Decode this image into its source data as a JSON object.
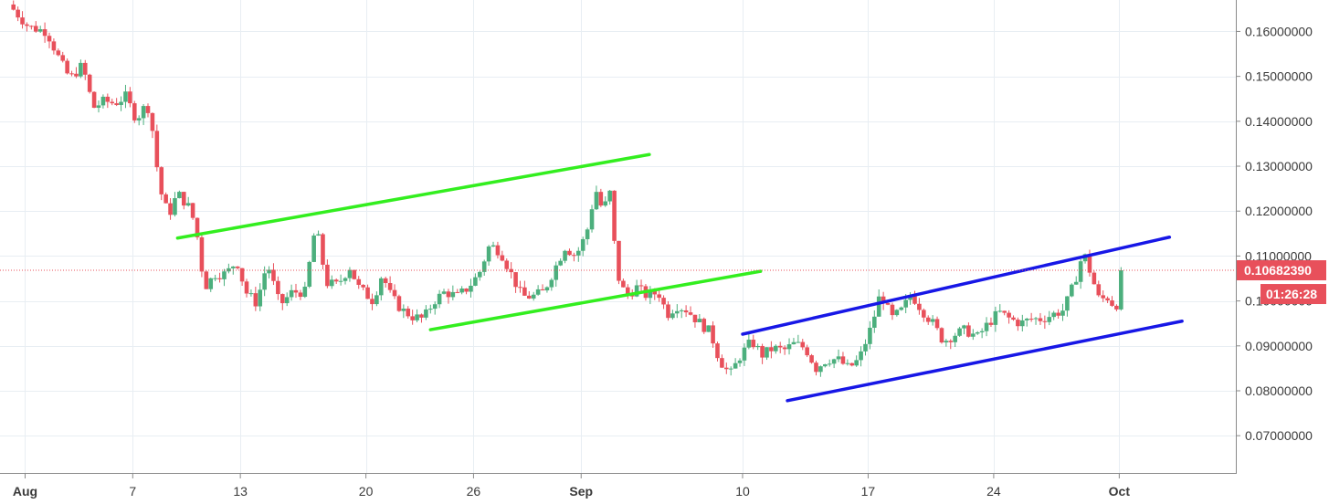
{
  "chart_data": {
    "type": "candlestick",
    "ylim": [
      0.0615,
      0.167
    ],
    "y_ticks": [
      "0.16000000",
      "0.15000000",
      "0.14000000",
      "0.13000000",
      "0.12000000",
      "0.11000000",
      "0.10000000",
      "0.09000000",
      "0.08000000",
      "0.07000000"
    ],
    "y_tick_values": [
      0.16,
      0.15,
      0.14,
      0.13,
      0.12,
      0.11,
      0.1,
      0.09,
      0.08,
      0.07
    ],
    "x_range_days": [
      -1.4,
      67.5
    ],
    "x_ticks": [
      {
        "label": "Aug",
        "day": 0,
        "bold": true
      },
      {
        "label": "7",
        "day": 6,
        "bold": false
      },
      {
        "label": "13",
        "day": 12,
        "bold": false
      },
      {
        "label": "20",
        "day": 19,
        "bold": false
      },
      {
        "label": "26",
        "day": 25,
        "bold": false
      },
      {
        "label": "Sep",
        "day": 31,
        "bold": true
      },
      {
        "label": "10",
        "day": 40,
        "bold": false
      },
      {
        "label": "17",
        "day": 47,
        "bold": false
      },
      {
        "label": "24",
        "day": 54,
        "bold": false
      },
      {
        "label": "Oct",
        "day": 61,
        "bold": true
      }
    ],
    "anchors": [
      [
        -0.9,
        0.166
      ],
      [
        0.2,
        0.161
      ],
      [
        1.2,
        0.16
      ],
      [
        2.0,
        0.153
      ],
      [
        2.5,
        0.1495
      ],
      [
        3.2,
        0.1525
      ],
      [
        3.8,
        0.143
      ],
      [
        4.4,
        0.1445
      ],
      [
        5.0,
        0.144
      ],
      [
        5.6,
        0.1455
      ],
      [
        6.2,
        0.1405
      ],
      [
        6.8,
        0.144
      ],
      [
        7.1,
        0.138
      ],
      [
        7.5,
        0.125
      ],
      [
        8.0,
        0.119
      ],
      [
        8.5,
        0.124
      ],
      [
        9.1,
        0.121
      ],
      [
        9.5,
        0.117
      ],
      [
        10.0,
        0.103
      ],
      [
        10.6,
        0.106
      ],
      [
        11.2,
        0.106
      ],
      [
        11.8,
        0.109
      ],
      [
        12.3,
        0.102
      ],
      [
        12.9,
        0.0995
      ],
      [
        13.5,
        0.1085
      ],
      [
        14.2,
        0.099
      ],
      [
        14.9,
        0.102
      ],
      [
        15.6,
        0.102
      ],
      [
        16.2,
        0.117
      ],
      [
        16.8,
        0.104
      ],
      [
        17.4,
        0.1035
      ],
      [
        18.1,
        0.1075
      ],
      [
        18.6,
        0.103
      ],
      [
        19.4,
        0.1
      ],
      [
        19.9,
        0.106
      ],
      [
        20.4,
        0.101
      ],
      [
        21.0,
        0.098
      ],
      [
        21.6,
        0.0965
      ],
      [
        22.2,
        0.096
      ],
      [
        22.8,
        0.1
      ],
      [
        23.4,
        0.102
      ],
      [
        24.1,
        0.101
      ],
      [
        24.7,
        0.103
      ],
      [
        25.3,
        0.106
      ],
      [
        25.9,
        0.1125
      ],
      [
        26.5,
        0.111
      ],
      [
        27.1,
        0.106
      ],
      [
        27.7,
        0.101
      ],
      [
        28.3,
        0.101
      ],
      [
        28.9,
        0.102
      ],
      [
        29.5,
        0.107
      ],
      [
        30.1,
        0.112
      ],
      [
        30.7,
        0.11
      ],
      [
        31.3,
        0.115
      ],
      [
        31.8,
        0.125
      ],
      [
        32.2,
        0.12
      ],
      [
        32.6,
        0.124
      ],
      [
        33.0,
        0.106
      ],
      [
        33.5,
        0.101
      ],
      [
        34.1,
        0.103
      ],
      [
        34.7,
        0.101
      ],
      [
        35.3,
        0.102
      ],
      [
        35.8,
        0.097
      ],
      [
        36.3,
        0.099
      ],
      [
        36.9,
        0.098
      ],
      [
        37.5,
        0.0955
      ],
      [
        38.2,
        0.093
      ],
      [
        38.7,
        0.087
      ],
      [
        39.3,
        0.0835
      ],
      [
        39.9,
        0.088
      ],
      [
        40.5,
        0.091
      ],
      [
        41.1,
        0.088
      ],
      [
        41.7,
        0.0895
      ],
      [
        42.3,
        0.089
      ],
      [
        42.9,
        0.0905
      ],
      [
        43.5,
        0.0895
      ],
      [
        44.1,
        0.085
      ],
      [
        44.7,
        0.087
      ],
      [
        45.3,
        0.087
      ],
      [
        45.9,
        0.085
      ],
      [
        46.5,
        0.087
      ],
      [
        47.2,
        0.0945
      ],
      [
        47.7,
        0.102
      ],
      [
        48.3,
        0.096
      ],
      [
        48.9,
        0.098
      ],
      [
        49.4,
        0.1015
      ],
      [
        50.0,
        0.098
      ],
      [
        50.6,
        0.095
      ],
      [
        51.2,
        0.091
      ],
      [
        51.8,
        0.0925
      ],
      [
        52.4,
        0.0935
      ],
      [
        53.1,
        0.092
      ],
      [
        53.7,
        0.095
      ],
      [
        54.3,
        0.0975
      ],
      [
        54.9,
        0.096
      ],
      [
        55.5,
        0.095
      ],
      [
        56.1,
        0.096
      ],
      [
        56.7,
        0.096
      ],
      [
        57.3,
        0.097
      ],
      [
        57.9,
        0.098
      ],
      [
        58.5,
        0.104
      ],
      [
        59.0,
        0.111
      ],
      [
        59.5,
        0.105
      ],
      [
        59.9,
        0.1
      ],
      [
        60.3,
        0.101
      ],
      [
        60.7,
        0.099
      ],
      [
        61.0,
        0.0995
      ],
      [
        61.3,
        0.1065
      ]
    ],
    "last_price": "0.10682390",
    "last_price_value": 0.1068239,
    "countdown": "01:26:28",
    "trend_lines": [
      {
        "name": "green-channel-upper",
        "color": "#33ee1f",
        "from": [
          8.5,
          0.114
        ],
        "to": [
          34.8,
          0.1326
        ]
      },
      {
        "name": "green-channel-lower",
        "color": "#33ee1f",
        "from": [
          22.6,
          0.0936
        ],
        "to": [
          41.0,
          0.1066
        ]
      },
      {
        "name": "blue-channel-upper",
        "color": "#1717e6",
        "from": [
          40.0,
          0.0926
        ],
        "to": [
          63.8,
          0.1142
        ]
      },
      {
        "name": "blue-channel-lower",
        "color": "#1717e6",
        "from": [
          42.5,
          0.0778
        ],
        "to": [
          64.5,
          0.0955
        ]
      }
    ],
    "colors": {
      "up": "#4caf7d",
      "down": "#e8505b",
      "grid": "#e8eef3",
      "axis": "#8a8a8a",
      "price_tag": "#e8505b"
    }
  }
}
